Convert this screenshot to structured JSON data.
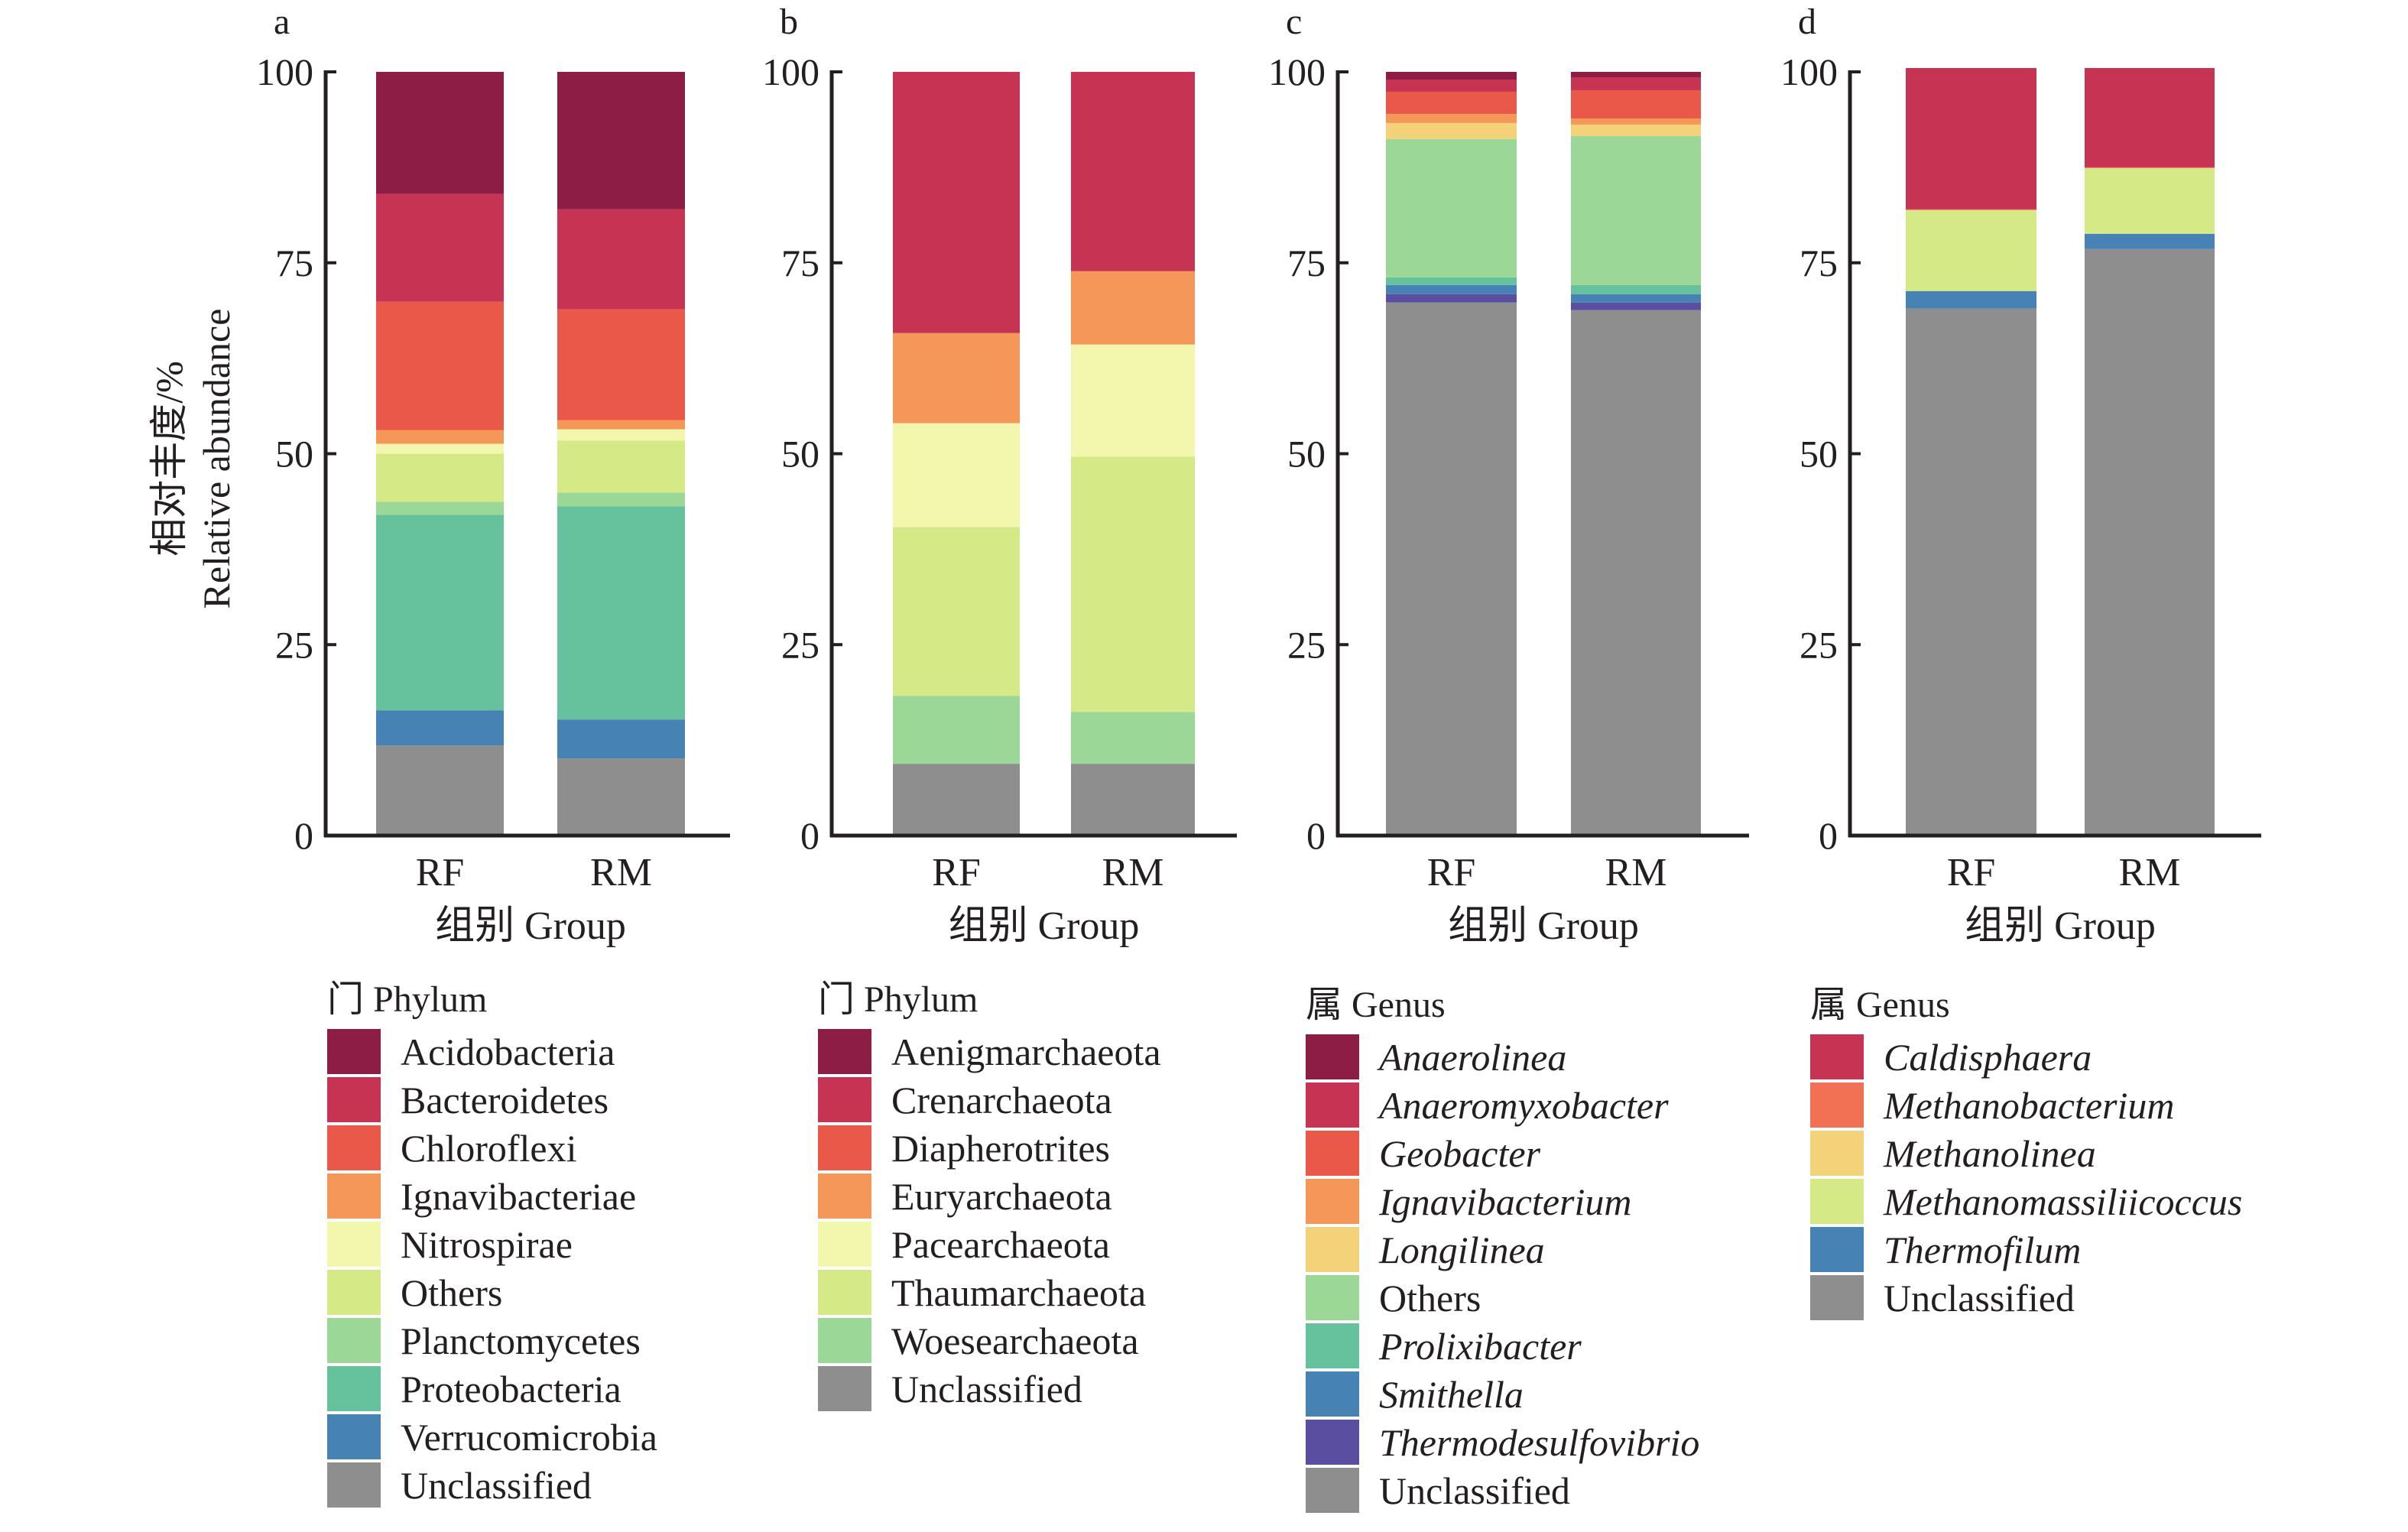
{
  "figure": {
    "ylabel_cn": "相对丰度/%",
    "ylabel_en": "Relative abundance",
    "xlabel": "组别 Group"
  },
  "chart_data": [
    {
      "type": "bar",
      "stacked": true,
      "panel": "a",
      "title": "",
      "xlabel": "组别 Group",
      "ylabel": "相对丰度/% Relative abundance",
      "ylim": [
        0,
        100
      ],
      "yticks": [
        0,
        25,
        50,
        75,
        100
      ],
      "categories": [
        "RF",
        "RM"
      ],
      "legend_title": "门 Phylum",
      "legend_position": "bottom",
      "italic_legend": false,
      "series": [
        {
          "name": "Unclassified",
          "color": "#8f8e8f",
          "values": [
            11.8,
            10.1
          ]
        },
        {
          "name": "Verrucomicrobia",
          "color": "#4682b4",
          "values": [
            4.6,
            5.1
          ]
        },
        {
          "name": "Proteobacteria",
          "color": "#66c29c",
          "values": [
            25.6,
            27.9
          ]
        },
        {
          "name": "Planctomycetes",
          "color": "#9bd796",
          "values": [
            1.7,
            1.8
          ]
        },
        {
          "name": "Others",
          "color": "#d5e987",
          "values": [
            6.3,
            6.8
          ]
        },
        {
          "name": "Nitrospirae",
          "color": "#f3f6ad",
          "values": [
            1.3,
            1.5
          ]
        },
        {
          "name": "Ignavibacteriae",
          "color": "#f59758",
          "values": [
            1.8,
            1.2
          ]
        },
        {
          "name": "Chloroflexi",
          "color": "#e95848",
          "values": [
            16.8,
            14.5
          ]
        },
        {
          "name": "Bacteroidetes",
          "color": "#c73352",
          "values": [
            14.1,
            13.1
          ]
        },
        {
          "name": "Acidobacteria",
          "color": "#8e1d46",
          "values": [
            16.0,
            18.0
          ]
        }
      ]
    },
    {
      "type": "bar",
      "stacked": true,
      "panel": "b",
      "title": "",
      "xlabel": "组别 Group",
      "ylabel": "",
      "ylim": [
        0,
        100
      ],
      "yticks": [
        0,
        25,
        50,
        75,
        100
      ],
      "categories": [
        "RF",
        "RM"
      ],
      "legend_title": "门 Phylum",
      "legend_position": "bottom",
      "italic_legend": false,
      "series": [
        {
          "name": "Unclassified",
          "color": "#8f8e8f",
          "values": [
            9.4,
            9.4
          ]
        },
        {
          "name": "Woesearchaeota",
          "color": "#9bd796",
          "values": [
            8.9,
            6.8
          ]
        },
        {
          "name": "Thaumarchaeota",
          "color": "#d5e987",
          "values": [
            22.1,
            33.4
          ]
        },
        {
          "name": "Pacearchaeota",
          "color": "#f3f6ad",
          "values": [
            13.6,
            14.7
          ]
        },
        {
          "name": "Euryarchaeota",
          "color": "#f59758",
          "values": [
            11.8,
            9.6
          ]
        },
        {
          "name": "Diapherotrites",
          "color": "#e95848",
          "values": [
            0,
            0
          ]
        },
        {
          "name": "Crenarchaeota",
          "color": "#c73352",
          "values": [
            34.2,
            26.1
          ]
        },
        {
          "name": "Aenigmarchaeota",
          "color": "#8e1d46",
          "values": [
            0,
            0
          ]
        }
      ]
    },
    {
      "type": "bar",
      "stacked": true,
      "panel": "c",
      "title": "",
      "xlabel": "组别 Group",
      "ylabel": "",
      "ylim": [
        0,
        100
      ],
      "yticks": [
        0,
        25,
        50,
        75,
        100
      ],
      "categories": [
        "RF",
        "RM"
      ],
      "legend_title": "属 Genus",
      "legend_position": "bottom",
      "italic_legend": true,
      "series": [
        {
          "name": "Unclassified",
          "color": "#8f8e8f",
          "values": [
            69.8,
            68.8
          ],
          "italic": false
        },
        {
          "name": "Thermodesulfovibrio",
          "color": "#5a4ea1",
          "values": [
            1.1,
            1.0
          ]
        },
        {
          "name": "Smithella",
          "color": "#4682b4",
          "values": [
            1.2,
            1.1
          ]
        },
        {
          "name": "Prolixibacter",
          "color": "#66c29c",
          "values": [
            1.0,
            1.2
          ]
        },
        {
          "name": "Others",
          "color": "#9bd796",
          "values": [
            18.1,
            19.5
          ],
          "italic": false
        },
        {
          "name": "Longilinea",
          "color": "#f4d27a",
          "values": [
            2.1,
            1.5
          ]
        },
        {
          "name": "Ignavibacterium",
          "color": "#f59758",
          "values": [
            1.2,
            0.8
          ]
        },
        {
          "name": "Geobacter",
          "color": "#e95848",
          "values": [
            2.9,
            3.7
          ]
        },
        {
          "name": "Anaeromyxobacter",
          "color": "#c73352",
          "values": [
            1.6,
            1.7
          ]
        },
        {
          "name": "Anaerolinea",
          "color": "#8e1d46",
          "values": [
            1.0,
            0.7
          ]
        }
      ]
    },
    {
      "type": "bar",
      "stacked": true,
      "panel": "d",
      "title": "",
      "xlabel": "组别 Group",
      "ylabel": "",
      "ylim": [
        0,
        100
      ],
      "yticks": [
        0,
        25,
        50,
        75,
        100
      ],
      "categories": [
        "RF",
        "RM"
      ],
      "legend_title": "属 Genus",
      "legend_position": "bottom",
      "italic_legend": true,
      "series": [
        {
          "name": "Unclassified",
          "color": "#8f8e8f",
          "values": [
            69.0,
            76.8
          ],
          "italic": false
        },
        {
          "name": "Thermofilum",
          "color": "#4682b4",
          "values": [
            2.3,
            2.0
          ]
        },
        {
          "name": "Methanomassiliicoccus",
          "color": "#d5e987",
          "values": [
            10.6,
            8.6
          ]
        },
        {
          "name": "Methanolinea",
          "color": "#f4d27a",
          "values": [
            0,
            0
          ]
        },
        {
          "name": "Methanobacterium",
          "color": "#f27155",
          "values": [
            0.1,
            0.1
          ]
        },
        {
          "name": "Caldisphaera",
          "color": "#c73352",
          "values": [
            18.5,
            13.0
          ]
        }
      ]
    }
  ]
}
